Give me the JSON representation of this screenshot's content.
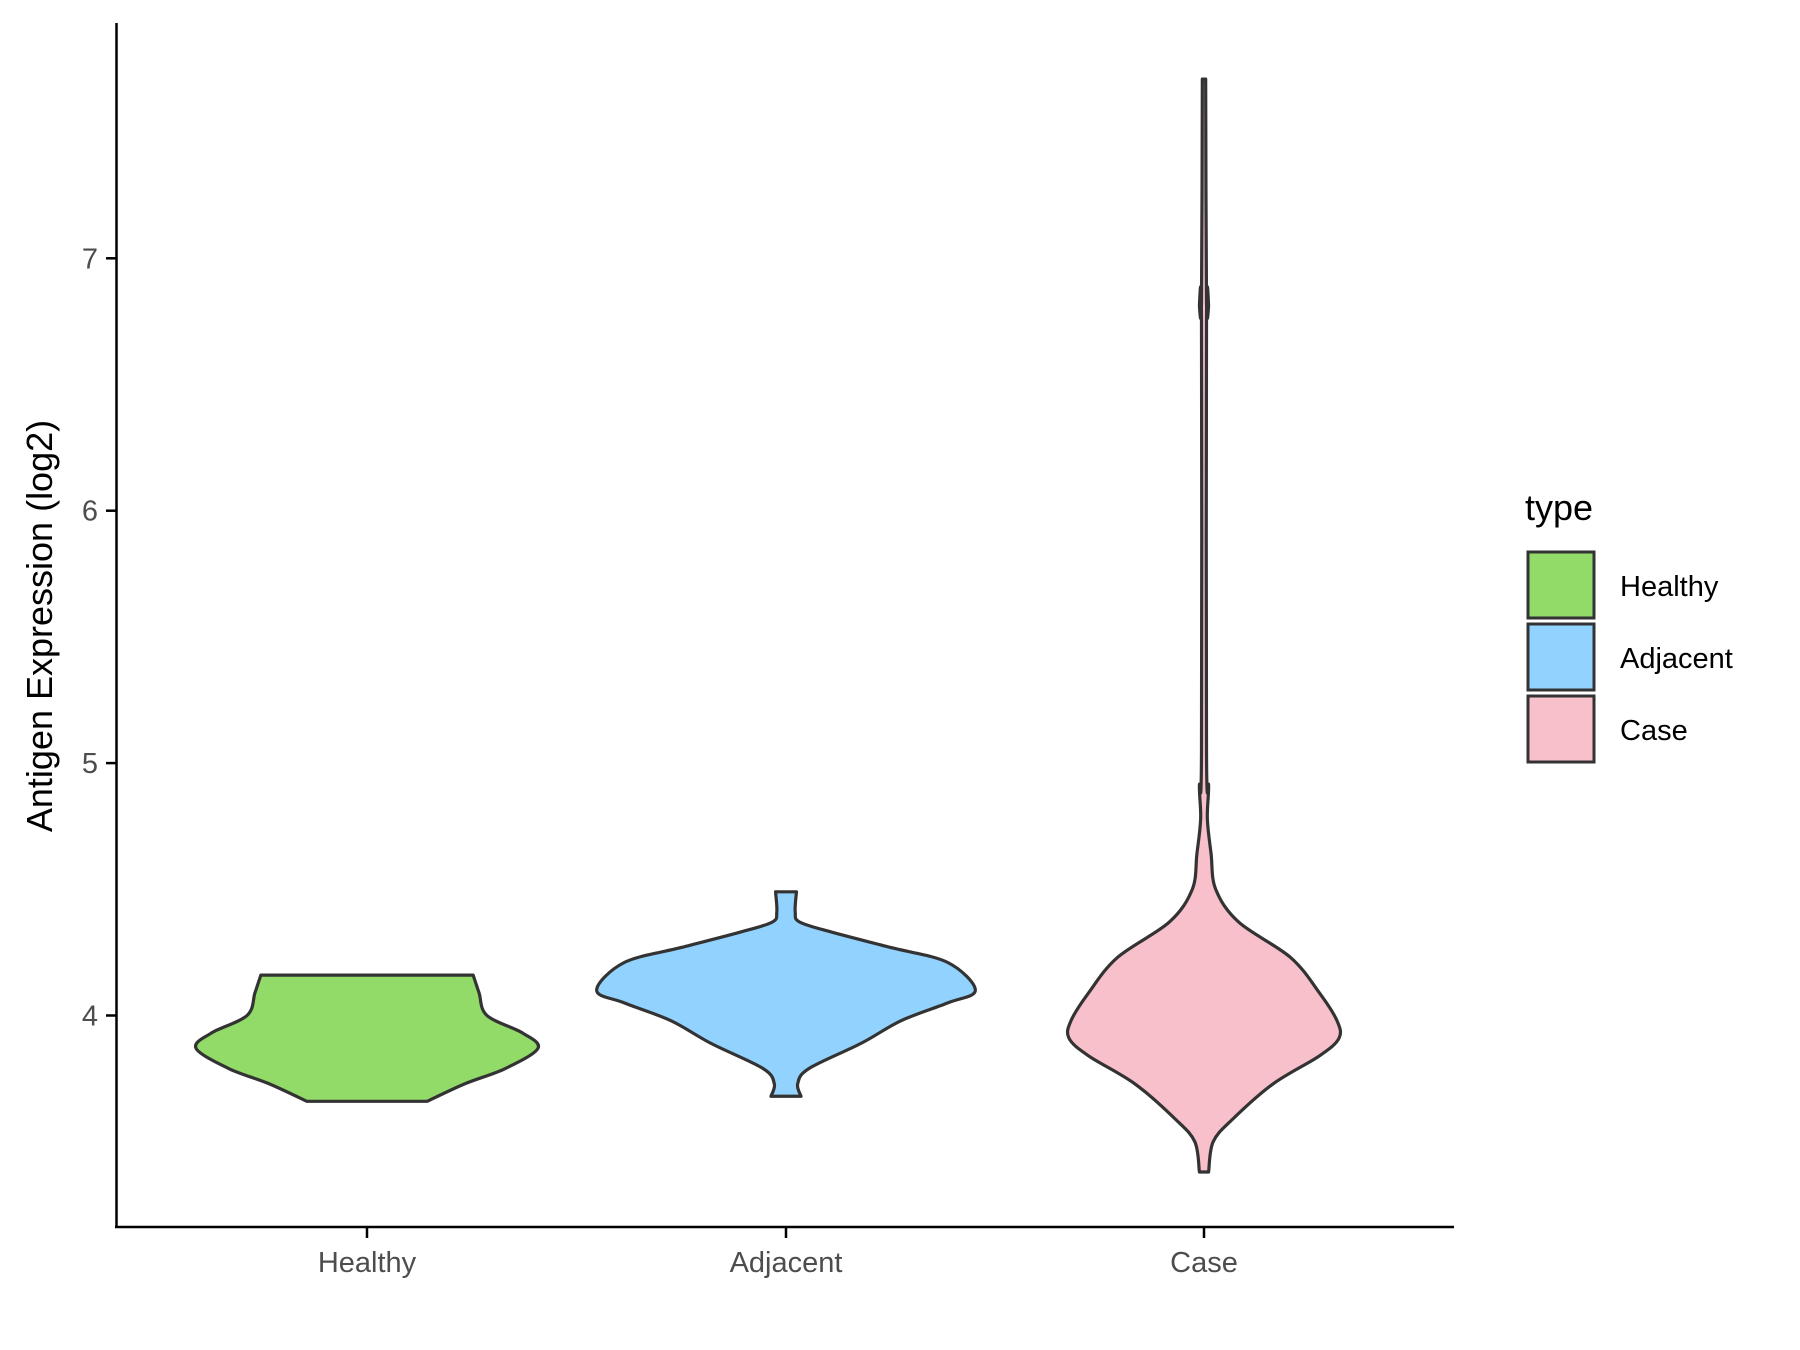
{
  "chart_data": {
    "type": "violin",
    "title": "",
    "xlabel": "",
    "ylabel": "Antigen Expression (log2)",
    "ylim": [
      3.16,
      7.93
    ],
    "yticks": [
      4,
      5,
      6,
      7
    ],
    "ytick_labels": [
      "4",
      "5",
      "6",
      "7"
    ],
    "categories": [
      "Healthy",
      "Adjacent",
      "Case"
    ],
    "grid": false,
    "legend": {
      "title": "type",
      "position": "right",
      "entries": [
        "Healthy",
        "Adjacent",
        "Case"
      ]
    },
    "colors": {
      "Healthy": "#93DB69",
      "Adjacent": "#91D3FE",
      "Case": "#F7C0CB",
      "outline": "#333333"
    },
    "series": [
      {
        "name": "Healthy",
        "y": [
          4.16,
          4.09,
          4.0,
          3.93,
          3.87,
          3.79,
          3.73,
          3.66
        ],
        "half_width": [
          0.254,
          0.268,
          0.287,
          0.373,
          0.409,
          0.331,
          0.235,
          0.144
        ]
      },
      {
        "name": "Adjacent",
        "y": [
          4.49,
          4.41,
          4.37,
          4.33,
          4.27,
          4.21,
          4.1,
          4.05,
          3.98,
          3.89,
          3.79,
          3.73,
          3.68
        ],
        "half_width": [
          0.025,
          0.022,
          0.033,
          0.11,
          0.249,
          0.387,
          0.453,
          0.387,
          0.276,
          0.18,
          0.055,
          0.028,
          0.036
        ]
      },
      {
        "name": "Case",
        "y": [
          7.71,
          6.83,
          6.81,
          6.74,
          5.05,
          4.91,
          4.78,
          4.64,
          4.5,
          4.37,
          4.23,
          4.09,
          3.98,
          3.91,
          3.84,
          3.73,
          3.59,
          3.5,
          3.38
        ],
        "half_width": [
          0.004,
          0.006,
          0.011,
          0.006,
          0.006,
          0.011,
          0.008,
          0.017,
          0.028,
          0.083,
          0.207,
          0.276,
          0.318,
          0.323,
          0.276,
          0.166,
          0.069,
          0.022,
          0.011
        ]
      }
    ]
  }
}
